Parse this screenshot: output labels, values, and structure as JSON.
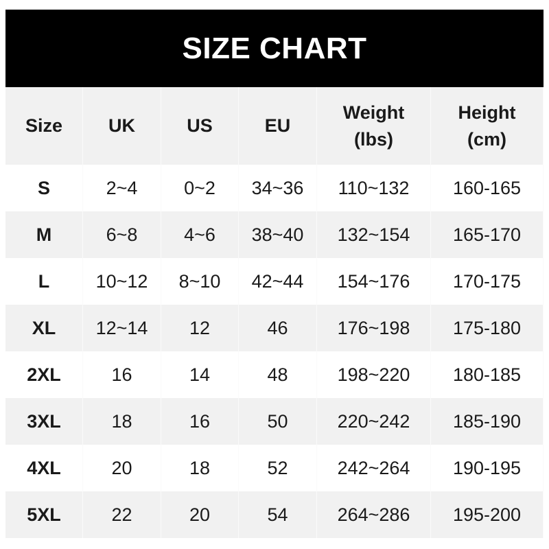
{
  "title": "SIZE CHART",
  "headers": [
    {
      "line1": "Size",
      "line2": ""
    },
    {
      "line1": "UK",
      "line2": ""
    },
    {
      "line1": "US",
      "line2": ""
    },
    {
      "line1": "EU",
      "line2": ""
    },
    {
      "line1": "Weight",
      "line2": "(lbs)"
    },
    {
      "line1": "Height",
      "line2": "(cm)"
    }
  ],
  "rows": [
    [
      "S",
      "2~4",
      "0~2",
      "34~36",
      "110~132",
      "160-165"
    ],
    [
      "M",
      "6~8",
      "4~6",
      "38~40",
      "132~154",
      "165-170"
    ],
    [
      "L",
      "10~12",
      "8~10",
      "42~44",
      "154~176",
      "170-175"
    ],
    [
      "XL",
      "12~14",
      "12",
      "46",
      "176~198",
      "175-180"
    ],
    [
      "2XL",
      "16",
      "14",
      "48",
      "198~220",
      "180-185"
    ],
    [
      "3XL",
      "18",
      "16",
      "50",
      "220~242",
      "185-190"
    ],
    [
      "4XL",
      "20",
      "18",
      "52",
      "242~264",
      "190-195"
    ],
    [
      "5XL",
      "22",
      "20",
      "54",
      "264~286",
      "195-200"
    ]
  ],
  "colors": {
    "title_bg": "#000000",
    "header_bg": "#f1f1f1",
    "stripe": "#f1f1f1"
  }
}
